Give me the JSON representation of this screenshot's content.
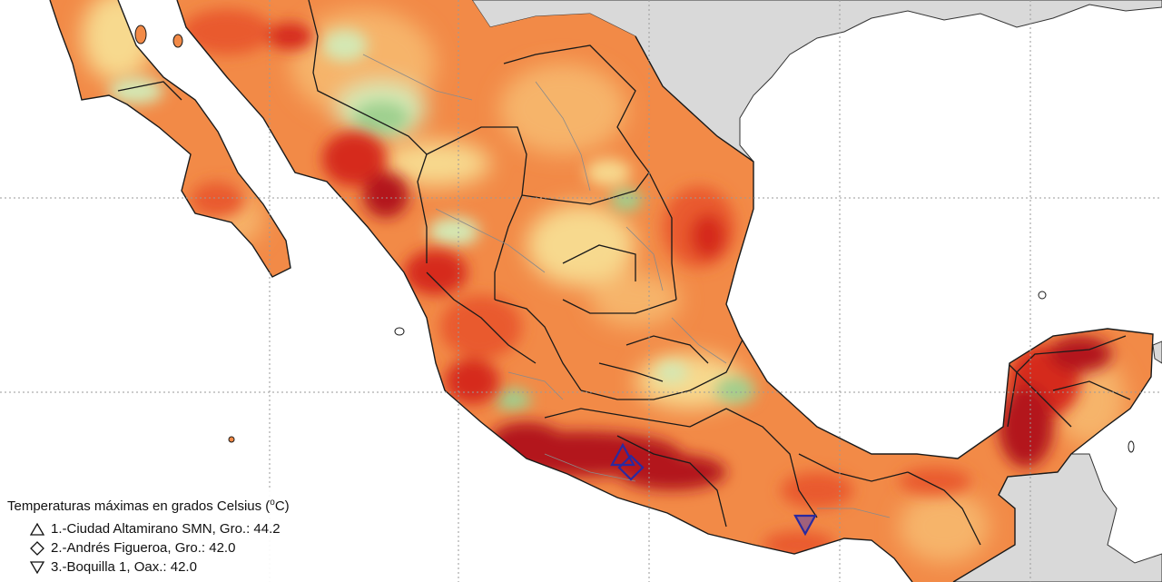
{
  "legend": {
    "title_prefix": "Temperaturas máximas en grados Celsius (",
    "title_degree": "o",
    "title_unit": "C)",
    "items": [
      {
        "symbol": "triangle-up-icon",
        "label": "1.-Ciudad Altamirano SMN, Gro.: 44.2"
      },
      {
        "symbol": "diamond-icon",
        "label": "2.-Andrés Figueroa, Gro.: 42.0"
      },
      {
        "symbol": "triangle-down-icon",
        "label": "3.-Boquilla 1, Oax.: 42.0"
      }
    ]
  },
  "colors": {
    "sea": "#ffffff",
    "neighbor_land": "#d9d9d9",
    "light_green": "#d4e8b4",
    "green": "#9fd08f",
    "pale_yellow": "#f7d98e",
    "light_orange": "#f6b46a",
    "orange": "#f28a47",
    "red_orange": "#e95a2e",
    "red": "#d62a1f",
    "dark_red": "#b3151a",
    "border": "#1a1a1a",
    "station_marker": "#2a2aa0",
    "grid": "#9a9a9a"
  }
}
